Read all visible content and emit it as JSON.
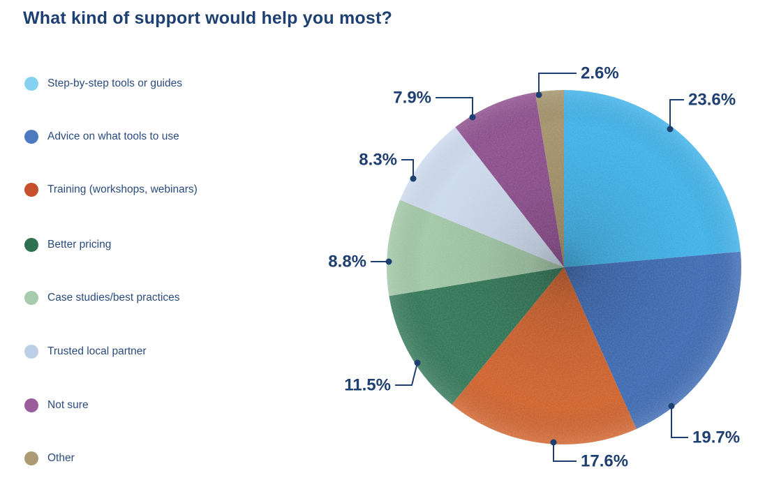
{
  "title": "What kind of support would help you most?",
  "colors": {
    "text_navy": "#1e3f71",
    "legend_text": "#2b4b7e",
    "leader_line": "#1e3f71",
    "background": "#ffffff"
  },
  "legend": {
    "position": "left",
    "items": [
      {
        "label": "Step-by-step tools or guides",
        "color": "#85d2f0"
      },
      {
        "label": "Advice on what tools to use",
        "color": "#4b7ac1"
      },
      {
        "label": "Training (workshops, webinars)",
        "color": "#c4512a"
      },
      {
        "label": "Better pricing",
        "color": "#2d7150"
      },
      {
        "label": "Case studies/best practices",
        "color": "#a7cbad"
      },
      {
        "label": "Trusted local partner",
        "color": "#bdcfe7"
      },
      {
        "label": "Not sure",
        "color": "#9a5c9a"
      },
      {
        "label": "Other",
        "color": "#ac9a74"
      }
    ]
  },
  "chart_data": {
    "type": "pie",
    "title": "What kind of support would help you most?",
    "start_angle_deg": 0,
    "direction": "clockwise",
    "legend_position": "left",
    "slices": [
      {
        "label": "Step-by-step tools or guides",
        "value": 23.6,
        "display": "23.6%",
        "color": "#41b2e8"
      },
      {
        "label": "Advice on what tools to use",
        "value": 19.7,
        "display": "19.7%",
        "color": "#3f6cb4"
      },
      {
        "label": "Training (workshops, webinars)",
        "value": 17.6,
        "display": "17.6%",
        "color": "#d0642f"
      },
      {
        "label": "Better pricing",
        "value": 11.5,
        "display": "11.5%",
        "color": "#35795a"
      },
      {
        "label": "Case studies/best practices",
        "value": 8.8,
        "display": "8.8%",
        "color": "#a2c7a7"
      },
      {
        "label": "Trusted local partner",
        "value": 8.3,
        "display": "8.3%",
        "color": "#cddaed"
      },
      {
        "label": "Not sure",
        "value": 7.9,
        "display": "7.9%",
        "color": "#8e508e"
      },
      {
        "label": "Other",
        "value": 2.6,
        "display": "2.6%",
        "color": "#a4936c"
      }
    ]
  }
}
